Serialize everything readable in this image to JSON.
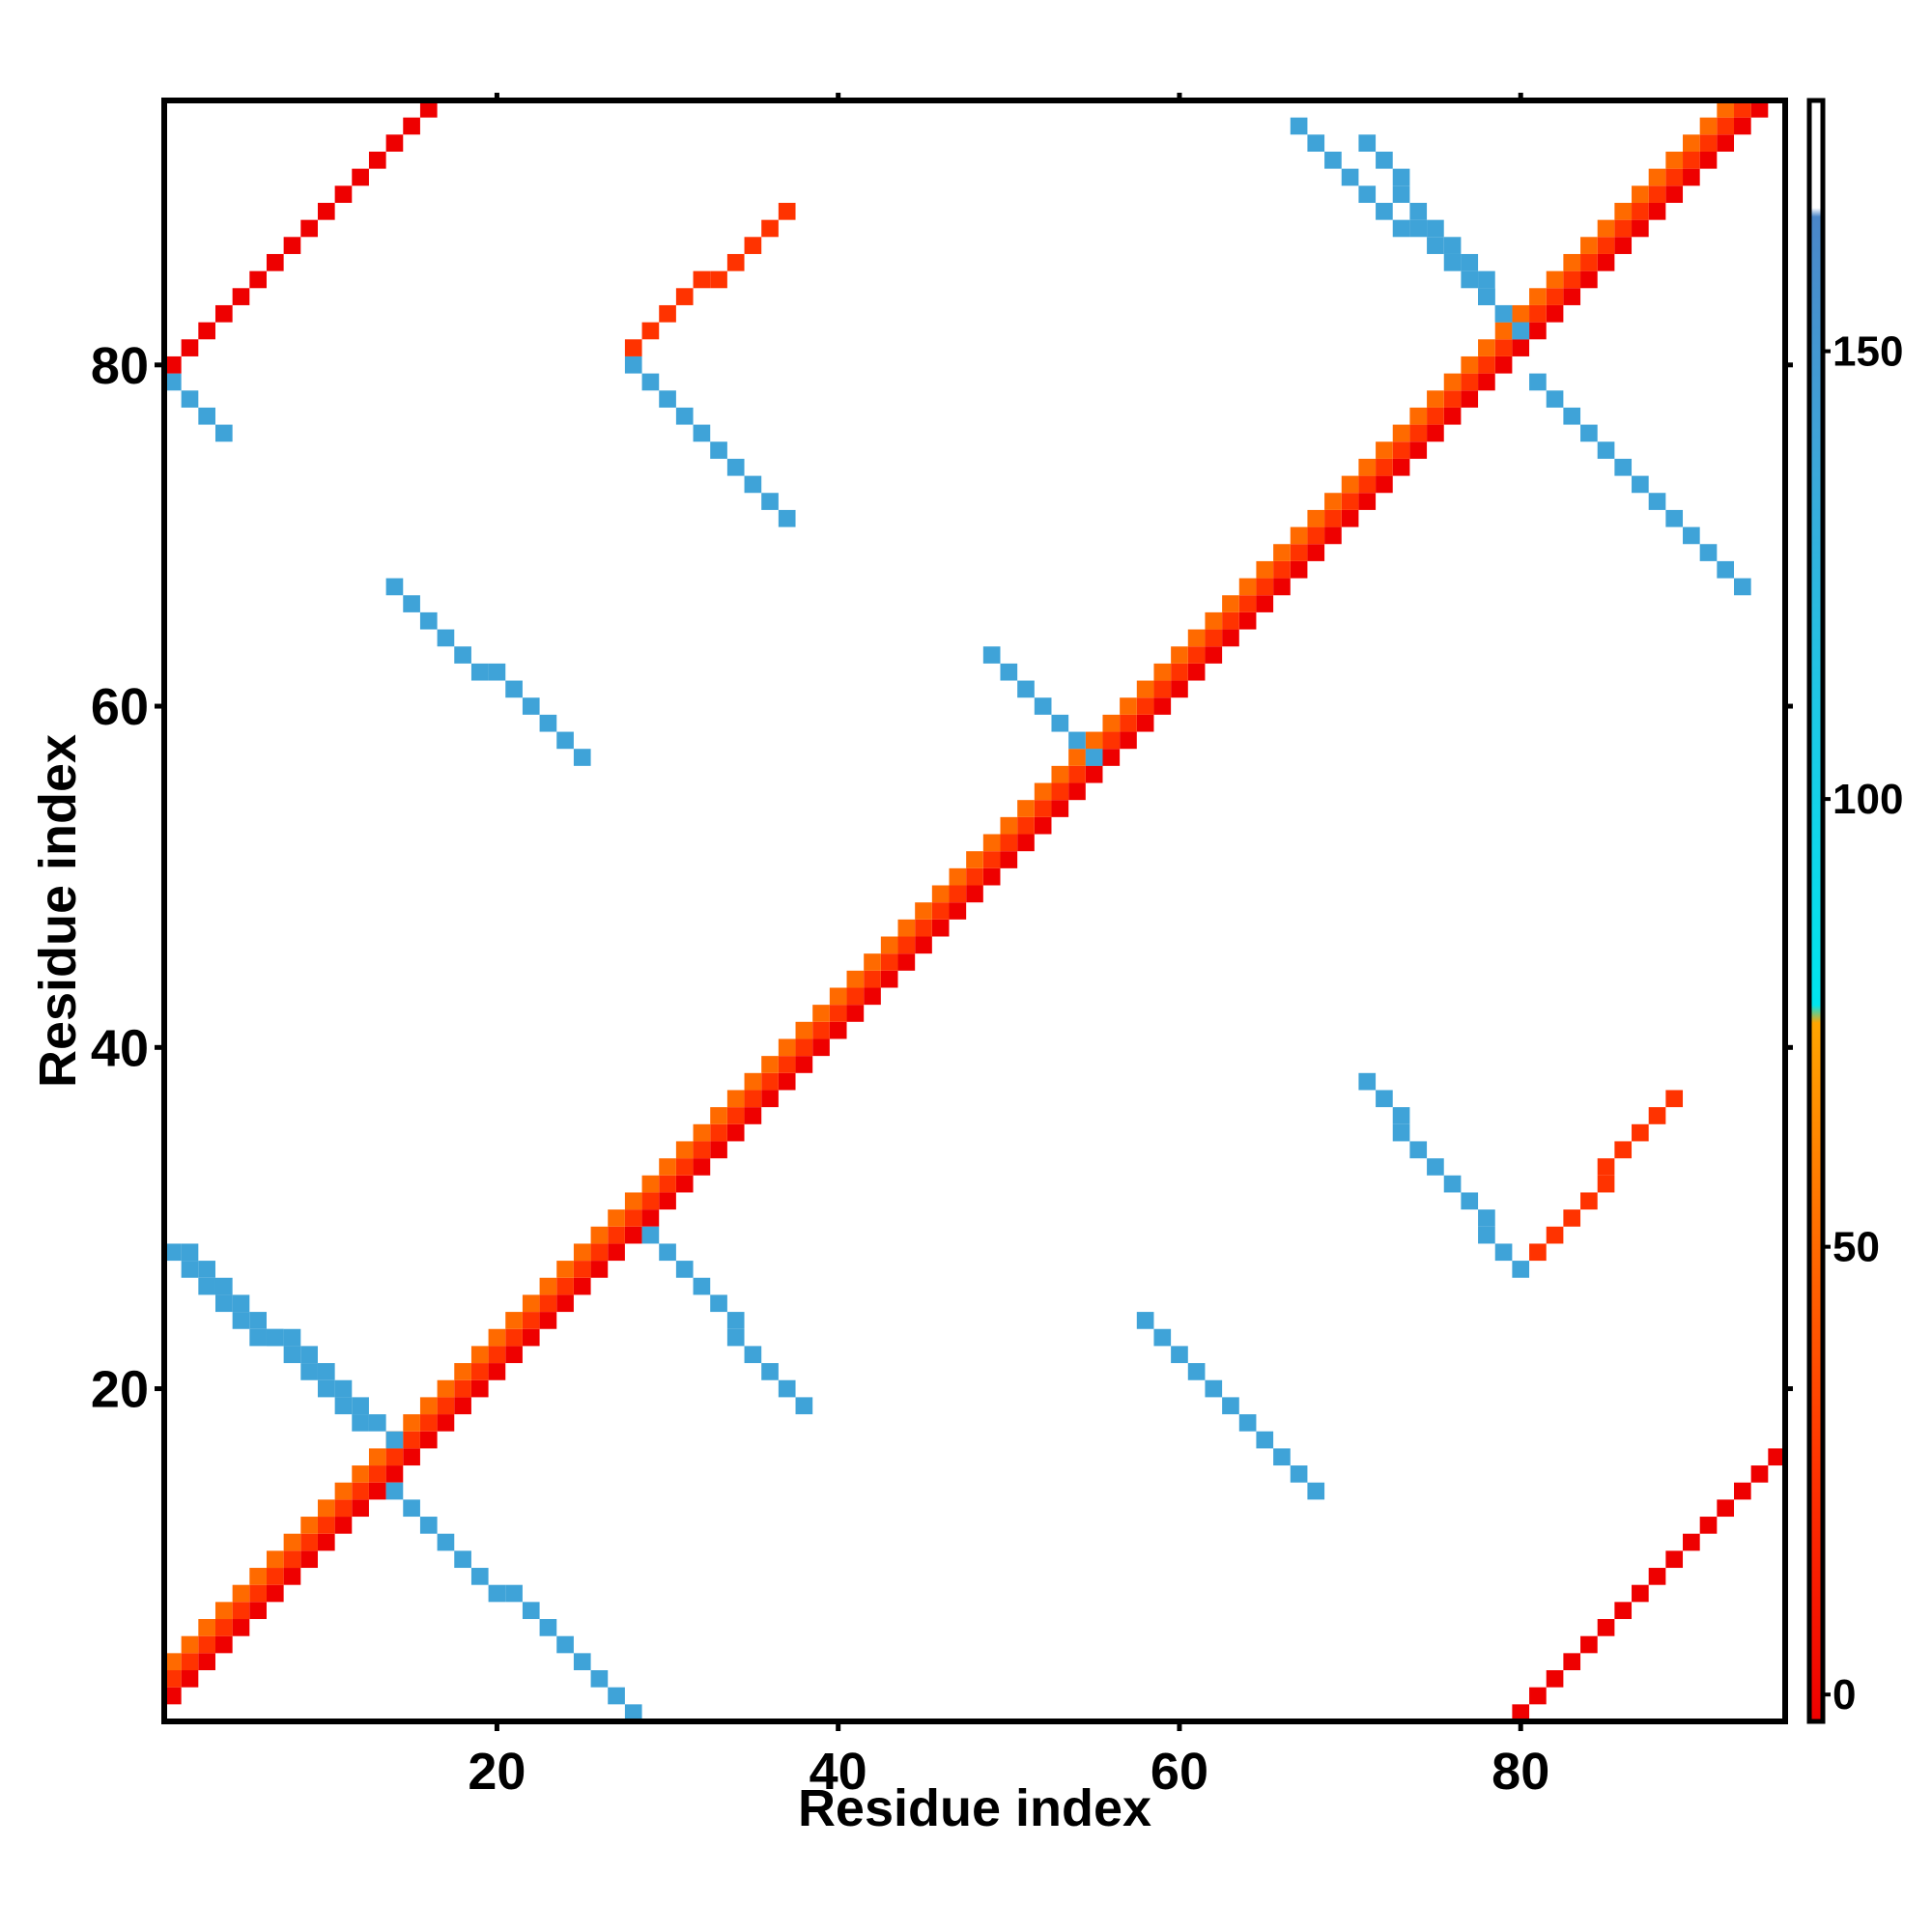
{
  "chart_data": {
    "type": "heatmap",
    "title": "",
    "xlabel": "Residue index",
    "ylabel": "Residue index",
    "xlim": [
      0.5,
      95.5
    ],
    "ylim": [
      0.5,
      95.5
    ],
    "x_ticks": [
      20,
      40,
      60,
      80
    ],
    "x_tick_labels": [
      "20",
      "40",
      "60",
      "80"
    ],
    "y_ticks": [
      20,
      40,
      60,
      80
    ],
    "y_tick_labels": [
      "20",
      "40",
      "60",
      "80"
    ],
    "colorbar": {
      "range": [
        -3,
        178
      ],
      "ticks": [
        0,
        50,
        100,
        150
      ],
      "tick_labels": [
        "0",
        "50",
        "100",
        "150"
      ],
      "stops": [
        {
          "value": -3,
          "color": "#ee0000"
        },
        {
          "value": 25,
          "color": "#ff3300"
        },
        {
          "value": 50,
          "color": "#ff6a00"
        },
        {
          "value": 75,
          "color": "#ffa500"
        },
        {
          "value": 77,
          "color": "#00e5ee"
        },
        {
          "value": 110,
          "color": "#1ec8e6"
        },
        {
          "value": 140,
          "color": "#3fa3d8"
        },
        {
          "value": 165,
          "color": "#4a86c8"
        },
        {
          "value": 166,
          "color": "#ffffff"
        },
        {
          "value": 178,
          "color": "#ffffff"
        }
      ]
    },
    "grid": false,
    "legend": "colorbar-right",
    "cells": [
      {
        "band": "diagonal-i-i+1",
        "from": [
          1,
          2
        ],
        "to": [
          94,
          95
        ],
        "value": 10
      },
      {
        "band": "diagonal-i-i+2",
        "from": [
          1,
          3
        ],
        "to": [
          93,
          95
        ],
        "value": 35
      },
      {
        "band": "diagonal-i-i+3",
        "from": [
          1,
          4
        ],
        "to": [
          92,
          95
        ],
        "value": 55
      },
      {
        "band": "antiparallel-hairpin-14-19",
        "from": [
          14,
          17
        ],
        "to": [
          2,
          28
        ],
        "value": 150
      },
      {
        "band": "antiparallel-hairpin-29-45",
        "from": [
          29,
          29
        ],
        "to": [
          38,
          19
        ],
        "value": 150
      },
      {
        "band": "antiparallel-hairpin-55-60",
        "from": [
          55,
          57
        ],
        "to": [
          49,
          63
        ],
        "value": 150
      },
      {
        "band": "antiparallel-hairpin-80-83",
        "from": [
          80,
          82
        ],
        "to": [
          71,
          93
        ],
        "value": 150
      },
      {
        "band": "antiparallel-65-60",
        "from": [
          58,
          24
        ],
        "to": [
          68,
          14
        ],
        "value": 150
      },
      {
        "band": "antiparallel-15-60",
        "from": [
          14,
          67
        ],
        "to": [
          25,
          57
        ],
        "value": 150
      },
      {
        "band": "antiparallel-35-75",
        "from": [
          71,
          38
        ],
        "to": [
          80,
          27
        ],
        "value": 150
      },
      {
        "band": "antiparallel-75-35",
        "from": [
          28,
          80
        ],
        "to": [
          37,
          71
        ],
        "value": 150
      },
      {
        "band": "antiparallel-75-80-upper",
        "from": [
          67,
          94
        ],
        "to": [
          80,
          82
        ],
        "value": 150
      },
      {
        "band": "antiparallel-80-90",
        "from": [
          81,
          79
        ],
        "to": [
          93,
          67
        ],
        "value": 150
      },
      {
        "band": "antiparallel-1-25",
        "from": [
          1,
          28
        ],
        "to": [
          12,
          18
        ],
        "value": 150
      },
      {
        "band": "antiparallel-15-5",
        "from": [
          14,
          14
        ],
        "to": [
          28,
          1
        ],
        "value": 150
      },
      {
        "band": "antiparallel-25-80",
        "from": [
          1,
          79
        ],
        "to": [
          4,
          76
        ],
        "value": 150
      },
      {
        "band": "parallel-1-85",
        "from": [
          1,
          80
        ],
        "to": [
          16,
          95
        ],
        "value": 15
      },
      {
        "band": "parallel-80-1",
        "from": [
          80,
          1
        ],
        "to": [
          95,
          16
        ],
        "value": 15
      },
      {
        "band": "parallel-30-80",
        "from": [
          28,
          81
        ],
        "to": [
          37,
          89
        ],
        "value": 40
      },
      {
        "band": "parallel-80-30",
        "from": [
          81,
          28
        ],
        "to": [
          89,
          37
        ],
        "value": 40
      }
    ]
  }
}
